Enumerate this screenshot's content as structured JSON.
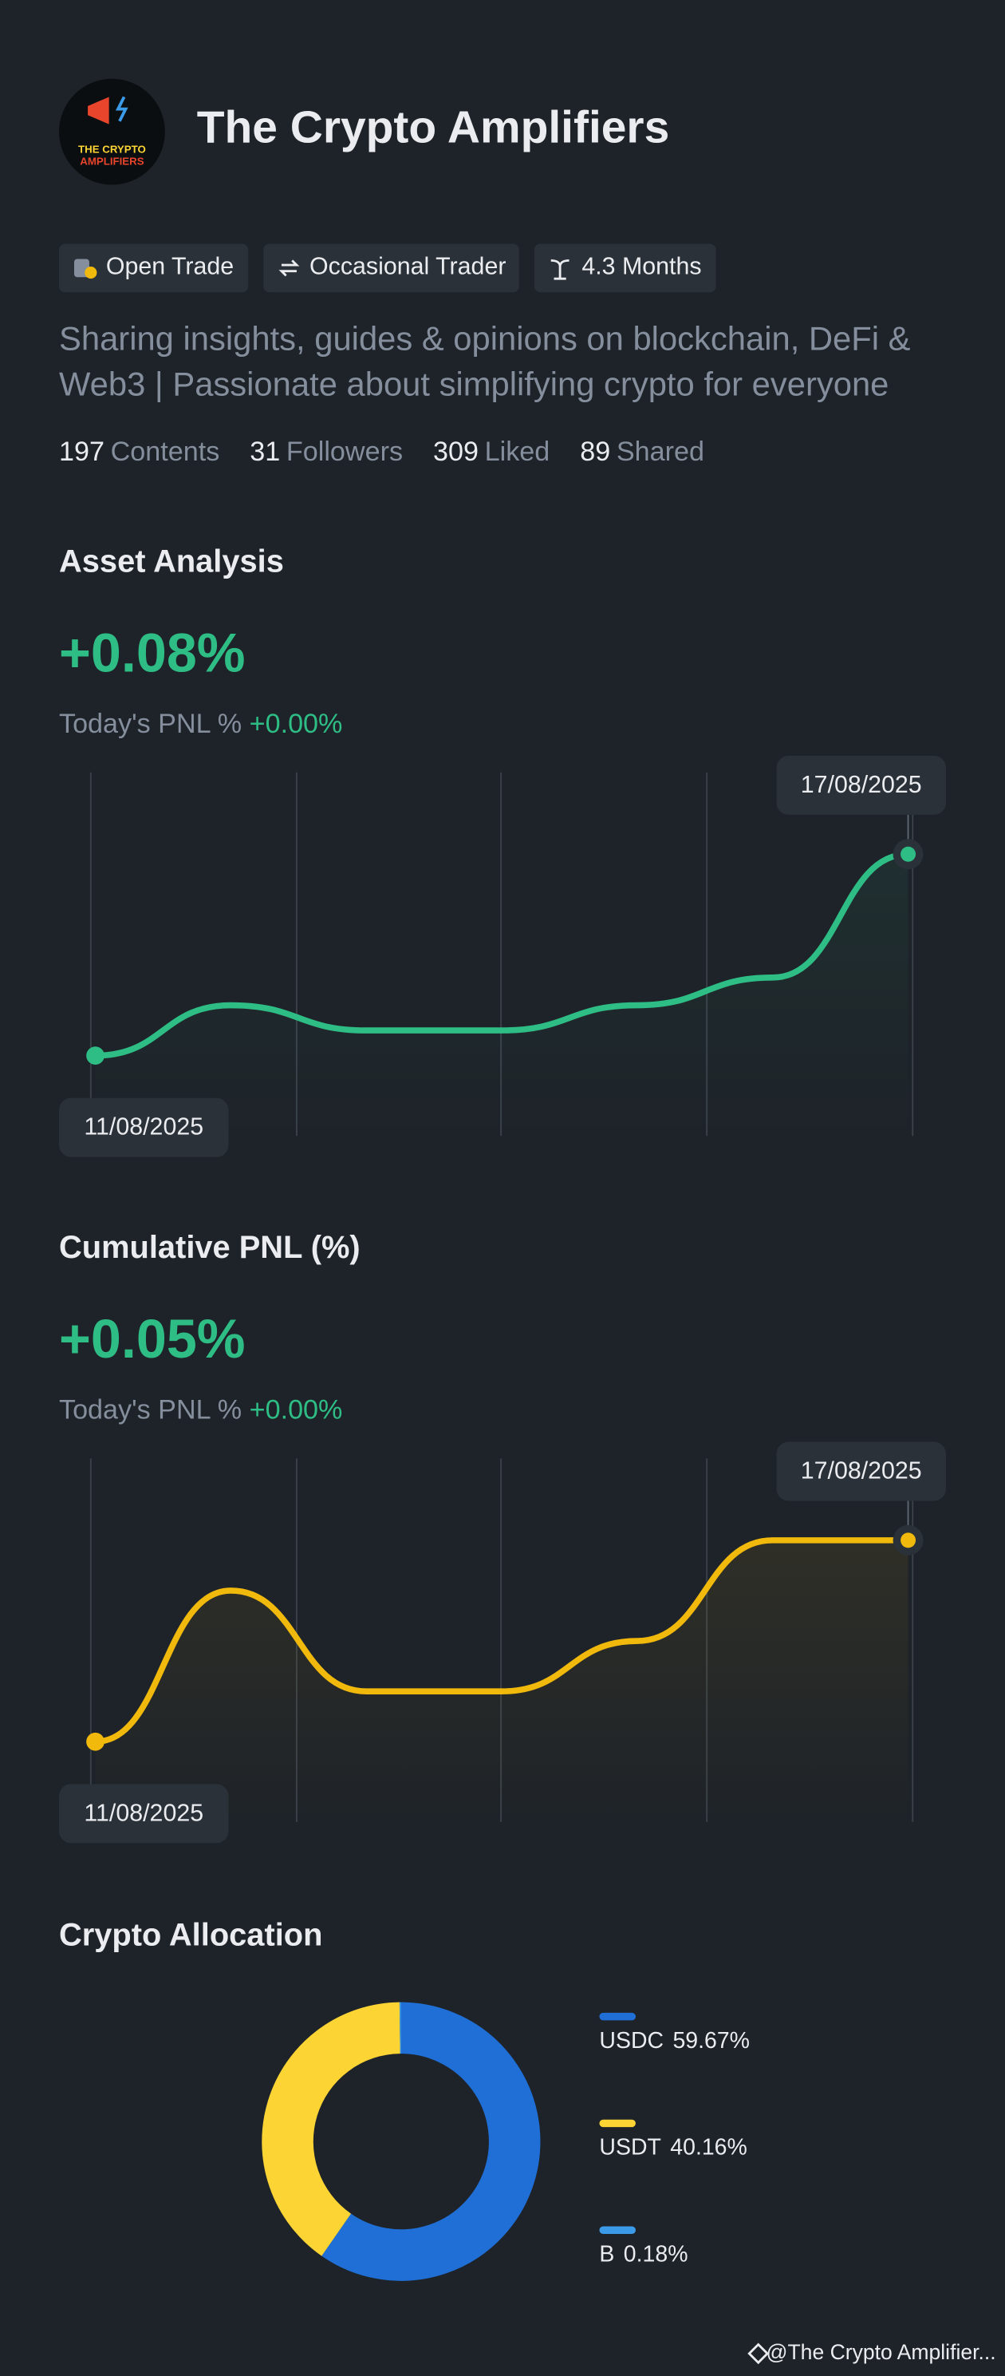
{
  "profile": {
    "name": "The Crypto Amplifiers",
    "avatar_text": [
      "THE CRYPTO",
      "AMPLIFIERS"
    ],
    "tags": [
      "Open Trade",
      "Occasional Trader",
      "4.3 Months"
    ],
    "bio": "Sharing insights, guides & opinions on blockchain, DeFi & Web3 | Passionate about simplifying crypto for everyone",
    "stats": [
      {
        "value": 197,
        "label": "Contents"
      },
      {
        "value": 31,
        "label": "Followers"
      },
      {
        "value": 309,
        "label": "Liked"
      },
      {
        "value": 89,
        "label": "Shared"
      }
    ]
  },
  "chart_data": [
    {
      "type": "line",
      "title": "Asset Analysis",
      "headline": "+0.08%",
      "subtitle": "Today's PNL %",
      "subtitle_value": "+0.00%",
      "start_label": "11/08/2025",
      "end_label": "17/08/2025",
      "color": "#2ebd85",
      "values": [
        0,
        0.02,
        0.01,
        0.01,
        0.02,
        0.031,
        0.08
      ]
    },
    {
      "type": "line",
      "title": "Cumulative PNL (%)",
      "headline": "+0.05%",
      "subtitle": "Today's PNL %",
      "subtitle_value": "+0.00%",
      "start_label": "11/08/2025",
      "end_label": "17/08/2025",
      "color": "#f0b90b",
      "values": [
        0,
        0.0375,
        0.0125,
        0.0125,
        0.025,
        0.05,
        0.05
      ]
    },
    {
      "type": "pie",
      "donut": true,
      "title": "Crypto Allocation",
      "categories": [
        "USDC",
        "USDT",
        "B"
      ],
      "values": [
        59.67,
        40.16,
        0.18
      ],
      "value_labels": [
        "59.67%",
        "40.16%",
        "0.18%"
      ],
      "colors": [
        "#1f6fd6",
        "#fcd535",
        "#3c9be8"
      ]
    }
  ],
  "footer": "@The Crypto Amplifier..."
}
